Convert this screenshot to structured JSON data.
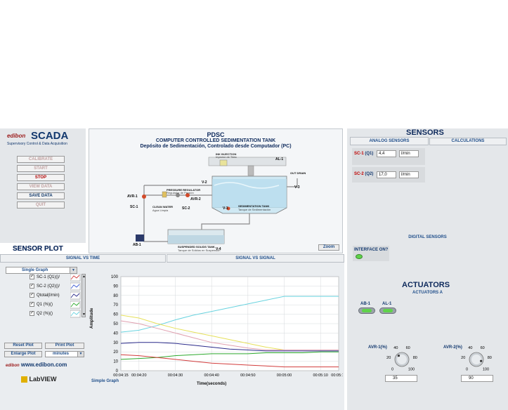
{
  "brand": {
    "edibon": "edibon",
    "scada": "SCADA",
    "subtitle": "Supervisory Control & Data Acquisition",
    "website": "www.edibon.com",
    "labview": "LabVIEW"
  },
  "controls": {
    "calibrate": "CALIBRATE",
    "start": "START",
    "stop": "STOP",
    "view_data": "VIEW DATA",
    "save_data": "SAVE DATA",
    "quit": "QUIT"
  },
  "diagram": {
    "title": "PDSC",
    "subtitle": "COMPUTER CONTROLLED SEDIMENTATION TANK",
    "subtitle_es": "Depósito de Sedimentación, Controlado desde Computador (PC)",
    "zoom": "Zoom",
    "labels": {
      "ink_injection": "INK INJECTION",
      "ink_injection_es": "Inyector de Tinta",
      "al1": "AL-1",
      "v3": "V-3",
      "v2": "V-2",
      "avr1": "AVR-1",
      "avr2": "AVR-2",
      "sc1": "SC-1",
      "sc2": "SC-2",
      "ab1": "AB-1",
      "v1": "V-1",
      "v4": "V-4",
      "pressure_reg": "PRESSURE REGULATOR",
      "pressure_reg_es": "Regulador de Presión",
      "clean_water": "CLEAN WATER",
      "clean_water_es": "Agua Limpia",
      "sed_tank": "SEDIMENTATION TANK",
      "sed_tank_es": "Tanque de Sedimentación",
      "susp_tank": "SUSPENDED SOLIDS TANK",
      "susp_tank_es": "Tanque de Sólidos en Suspensión",
      "out_drain": "OUT DRAIN"
    }
  },
  "sensor_plot": {
    "title": "SENSOR PLOT",
    "tabs": [
      "SIGNAL VS TIME",
      "SIGNAL VS SIGNAL"
    ],
    "graph_mode": "Single Graph",
    "legend": [
      {
        "label": "SC-1 (Q1)()/",
        "color": "#d23c3c"
      },
      {
        "label": "SC-2 (Q2)()/",
        "color": "#3a5ad2"
      },
      {
        "label": "Qtotal(l/min)",
        "color": "#2a2a8a"
      },
      {
        "label": "Q1 (%)()",
        "color": "#2ca82c"
      },
      {
        "label": "Q2 (%)()",
        "color": "#69d3df"
      }
    ],
    "reset_plot": "Reset Plot",
    "print_plot": "Print Plot",
    "enlarge_plot": "Enlarge Plot",
    "time_unit": "minutes",
    "graph_caption": "Simple Graph"
  },
  "chart_data": {
    "type": "line",
    "xlabel": "Time(seconds)",
    "ylabel": "Amplitude",
    "x_ticks": [
      "00:04:15",
      "00:04:20",
      "00:04:30",
      "00:04:40",
      "00:04:50",
      "00:05:00",
      "00:05:10",
      "00:05:15"
    ],
    "x_tick_seconds": [
      255,
      260,
      270,
      280,
      290,
      300,
      310,
      315
    ],
    "xlim": [
      255,
      315
    ],
    "ylim": [
      0,
      100
    ],
    "y_ticks": [
      0,
      10,
      20,
      30,
      40,
      50,
      60,
      70,
      80,
      90,
      100
    ],
    "grid": true,
    "series": [
      {
        "color": "#69d3df",
        "points": [
          [
            255,
            41
          ],
          [
            260,
            43
          ],
          [
            265,
            48
          ],
          [
            270,
            54
          ],
          [
            275,
            59
          ],
          [
            280,
            63
          ],
          [
            285,
            67
          ],
          [
            290,
            71
          ],
          [
            295,
            75
          ],
          [
            300,
            79
          ],
          [
            305,
            79
          ],
          [
            310,
            79
          ],
          [
            315,
            79
          ]
        ]
      },
      {
        "color": "#e6e05a",
        "points": [
          [
            255,
            59
          ],
          [
            260,
            56
          ],
          [
            265,
            50
          ],
          [
            270,
            45
          ],
          [
            275,
            41
          ],
          [
            280,
            37
          ],
          [
            285,
            33
          ],
          [
            290,
            29
          ],
          [
            295,
            25
          ],
          [
            300,
            22
          ],
          [
            305,
            22
          ],
          [
            310,
            22
          ],
          [
            315,
            22
          ]
        ]
      },
      {
        "color": "#e0a0b0",
        "points": [
          [
            255,
            53
          ],
          [
            260,
            50
          ],
          [
            265,
            45
          ],
          [
            270,
            40
          ],
          [
            275,
            35
          ],
          [
            280,
            30
          ],
          [
            285,
            27
          ],
          [
            290,
            24
          ],
          [
            295,
            22
          ],
          [
            300,
            22
          ],
          [
            305,
            22
          ],
          [
            310,
            22
          ],
          [
            315,
            22
          ]
        ]
      },
      {
        "color": "#2a2a8a",
        "points": [
          [
            255,
            29
          ],
          [
            260,
            30
          ],
          [
            265,
            30
          ],
          [
            270,
            29
          ],
          [
            275,
            27
          ],
          [
            280,
            25
          ],
          [
            285,
            23
          ],
          [
            290,
            22
          ],
          [
            295,
            21
          ],
          [
            300,
            21
          ],
          [
            305,
            21
          ],
          [
            310,
            21
          ],
          [
            315,
            21
          ]
        ]
      },
      {
        "color": "#2ca82c",
        "points": [
          [
            255,
            12
          ],
          [
            260,
            13
          ],
          [
            265,
            14
          ],
          [
            270,
            16
          ],
          [
            275,
            17
          ],
          [
            280,
            18
          ],
          [
            285,
            18
          ],
          [
            290,
            18
          ],
          [
            295,
            19
          ],
          [
            300,
            19
          ],
          [
            305,
            19
          ],
          [
            310,
            20
          ],
          [
            315,
            20
          ]
        ]
      },
      {
        "color": "#d23c3c",
        "points": [
          [
            255,
            17
          ],
          [
            260,
            16
          ],
          [
            265,
            14
          ],
          [
            270,
            12
          ],
          [
            275,
            10
          ],
          [
            280,
            8
          ],
          [
            285,
            7
          ],
          [
            290,
            6
          ],
          [
            295,
            5
          ],
          [
            300,
            4
          ],
          [
            305,
            4
          ],
          [
            310,
            4
          ],
          [
            315,
            4
          ]
        ]
      }
    ]
  },
  "sensors": {
    "title": "SENSORS",
    "tabs": [
      "ANALOG SENSORS",
      "CALCULATIONS"
    ],
    "analog": [
      {
        "tag": "SC-1",
        "name": "(Q1)",
        "value": "4,4",
        "unit": "l/min"
      },
      {
        "tag": "SC-2",
        "name": "(Q2)",
        "value": "17,0",
        "unit": "l/min"
      }
    ],
    "digital_title": "DIGITAL SENSORS",
    "interface_label": "INTERFACE ON?"
  },
  "actuators": {
    "title": "ACTUATORS",
    "subtitle": "ACTUATORS A",
    "switches": [
      "AB-1",
      "AL-1"
    ],
    "knobs": [
      {
        "label": "AVR-1(%)",
        "value": "35",
        "level": 35,
        "scale": [
          "0",
          "20",
          "40",
          "60",
          "80",
          "100"
        ]
      },
      {
        "label": "AVR-2(%)",
        "value": "90",
        "level": 90,
        "scale": [
          "0",
          "20",
          "40",
          "60",
          "80",
          "100"
        ]
      }
    ]
  }
}
